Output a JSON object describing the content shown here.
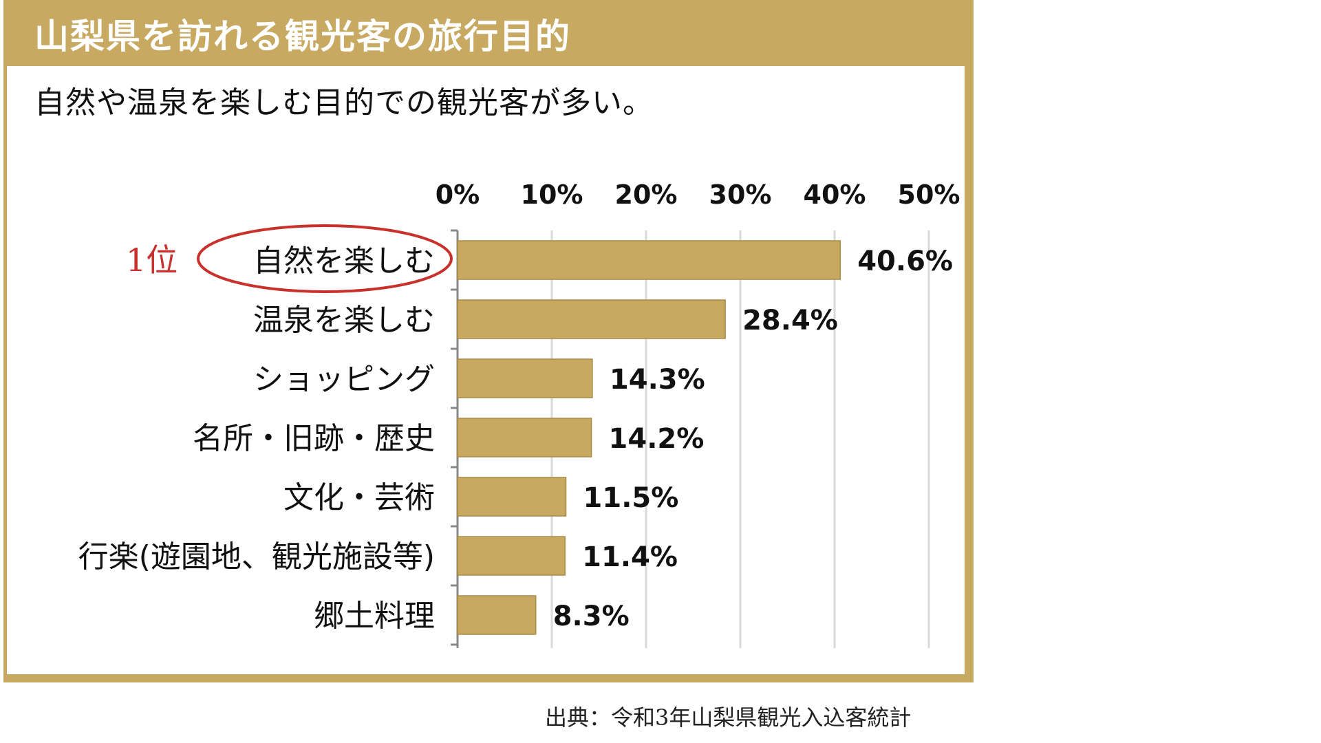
{
  "header": {
    "title": "山梨県を訪れる観光客の旅行目的",
    "subtitle": "自然や温泉を楽しむ目的での観光客が多い。"
  },
  "source": "出典：令和3年山梨県観光入込客統計",
  "highlight": {
    "rank_label": "1位",
    "category_index": 0,
    "color": "#c8312c"
  },
  "colors": {
    "frame": "#c7a961",
    "bar": "#c7a961",
    "bar_stroke": "#a88b40",
    "grid": "#d9d9d9",
    "axis": "#888888"
  },
  "chart_data": {
    "type": "bar",
    "orientation": "horizontal",
    "categories": [
      "自然を楽しむ",
      "温泉を楽しむ",
      "ショッピング",
      "名所・旧跡・歴史",
      "文化・芸術",
      "行楽(遊園地、観光施設等)",
      "郷土料理"
    ],
    "values": [
      40.6,
      28.4,
      14.3,
      14.2,
      11.5,
      11.4,
      8.3
    ],
    "value_labels": [
      "40.6%",
      "28.4%",
      "14.3%",
      "14.2%",
      "11.5%",
      "11.4%",
      "8.3%"
    ],
    "xlim": [
      0,
      50
    ],
    "ticks": [
      0,
      10,
      20,
      30,
      40,
      50
    ],
    "tick_labels": [
      "0%",
      "10%",
      "20%",
      "30%",
      "40%",
      "50%"
    ],
    "xaxis_position": "top",
    "grid": true,
    "legend": "none"
  }
}
